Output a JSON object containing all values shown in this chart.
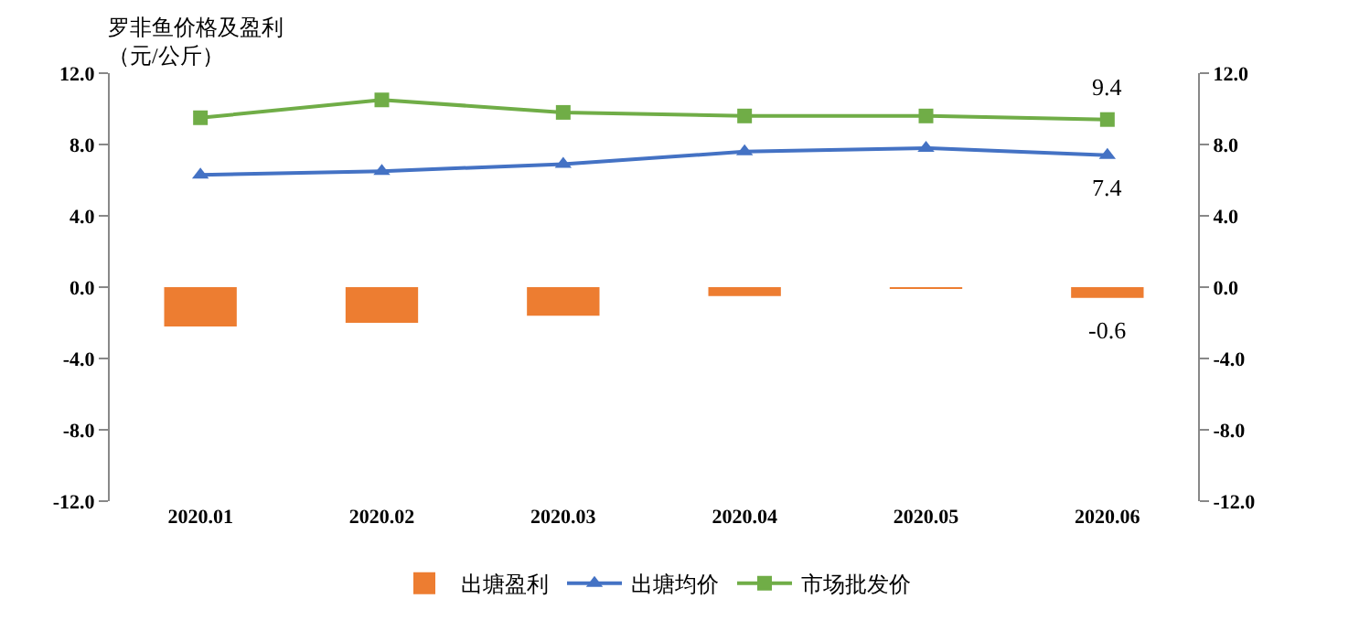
{
  "chart_data": {
    "type": "bar",
    "ylabel": "罗非鱼价格及盈利（元/公斤）",
    "categories": [
      "2020.01",
      "2020.02",
      "2020.03",
      "2020.04",
      "2020.05",
      "2020.06"
    ],
    "series": [
      {
        "name": "出塘盈利",
        "color": "#ed7d31",
        "values": [
          -2.2,
          -2.0,
          -1.6,
          -0.5,
          -0.1,
          -0.6
        ],
        "value_labels": [
          null,
          null,
          null,
          null,
          null,
          "-0.6"
        ]
      },
      {
        "name": "出塘均价",
        "type": "line",
        "axis": "y2",
        "marker": "triangle",
        "color": "#4472c4",
        "values": [
          6.3,
          6.5,
          6.9,
          7.6,
          7.8,
          7.4
        ],
        "value_labels": [
          null,
          null,
          null,
          null,
          null,
          "7.4"
        ]
      },
      {
        "name": "市场批发价",
        "type": "line",
        "axis": "y2",
        "marker": "square",
        "color": "#70ad47",
        "values": [
          9.5,
          10.5,
          9.8,
          9.6,
          9.6,
          9.4
        ],
        "value_labels": [
          null,
          null,
          null,
          null,
          null,
          "9.4"
        ]
      }
    ],
    "ylim": [
      -12,
      12
    ],
    "yticks": [
      {
        "value": -12,
        "label": "-12.0"
      },
      {
        "value": -8,
        "label": "-8.0"
      },
      {
        "value": -4,
        "label": "-4.0"
      },
      {
        "value": 0,
        "label": "0.0"
      },
      {
        "value": 4,
        "label": "4.0"
      },
      {
        "value": 8,
        "label": "8.0"
      },
      {
        "value": 12,
        "label": "12.0"
      }
    ],
    "y2lim": [
      -12,
      12
    ],
    "y2ticks": [
      {
        "value": -12,
        "label": "-12.0"
      },
      {
        "value": -8,
        "label": "-8.0"
      },
      {
        "value": -4,
        "label": "-4.0"
      },
      {
        "value": 0,
        "label": "0.0"
      },
      {
        "value": 4,
        "label": "4.0"
      },
      {
        "value": 8,
        "label": "8.0"
      },
      {
        "value": 12,
        "label": "12.0"
      }
    ],
    "grid": false,
    "legend": "bottom"
  }
}
